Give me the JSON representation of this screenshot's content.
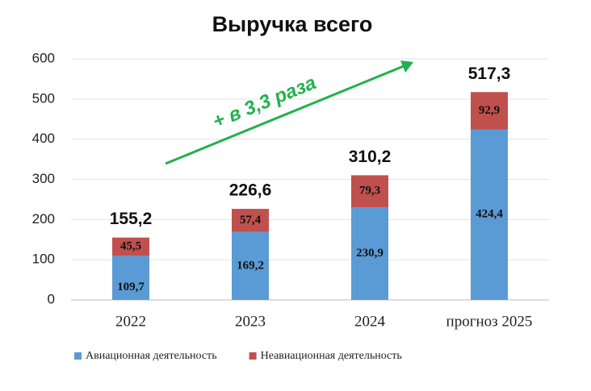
{
  "chart_data": {
    "type": "stacked_bar",
    "title": "Выручка всего",
    "annotation": "+ в 3,3 раза",
    "categories": [
      "2022",
      "2023",
      "2024",
      "прогноз 2025"
    ],
    "series": [
      {
        "name": "Авиационная деятельность",
        "color": "#5b9bd5",
        "values": [
          109.7,
          169.2,
          230.9,
          424.4
        ],
        "value_labels": [
          "109,7",
          "169,2",
          "230,9",
          "424,4"
        ]
      },
      {
        "name": "Неавиационная деятельность",
        "color": "#c0504d",
        "values": [
          45.5,
          57.4,
          79.3,
          92.9
        ],
        "value_labels": [
          "45,5",
          "57,4",
          "79,3",
          "92,9"
        ]
      }
    ],
    "totals": [
      155.2,
      226.6,
      310.2,
      517.3
    ],
    "total_labels": [
      "155,2",
      "226,6",
      "310,2",
      "517,3"
    ],
    "ylim": [
      0,
      600
    ],
    "yticks": [
      0,
      100,
      200,
      300,
      400,
      500,
      600
    ],
    "grid": true
  }
}
